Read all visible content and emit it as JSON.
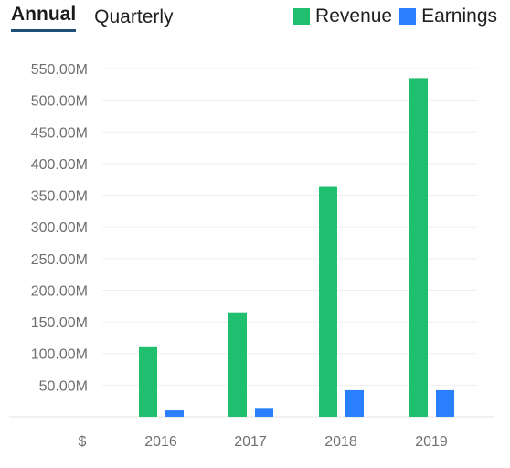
{
  "tabs": [
    {
      "label": "Annual",
      "active": true
    },
    {
      "label": "Quarterly",
      "active": false
    }
  ],
  "currency_label": "$",
  "colors": {
    "revenue": "#1fbf6f",
    "earnings": "#2a7fff",
    "active_tab_underline": "#1f4e79"
  },
  "chart_data": {
    "type": "bar",
    "categories": [
      "2016",
      "2017",
      "2018",
      "2019"
    ],
    "series": [
      {
        "name": "Revenue",
        "values": [
          110,
          165,
          363,
          535
        ]
      },
      {
        "name": "Earnings",
        "values": [
          10,
          14,
          42,
          42
        ]
      }
    ],
    "yticks": [
      "50.00M",
      "100.00M",
      "150.00M",
      "200.00M",
      "250.00M",
      "300.00M",
      "350.00M",
      "400.00M",
      "450.00M",
      "500.00M",
      "550.00M"
    ],
    "ytick_values": [
      50,
      100,
      150,
      200,
      250,
      300,
      350,
      400,
      450,
      500,
      550
    ],
    "ylim": [
      0,
      550
    ],
    "unit": "M",
    "legend_position": "top-right",
    "grid": true
  }
}
